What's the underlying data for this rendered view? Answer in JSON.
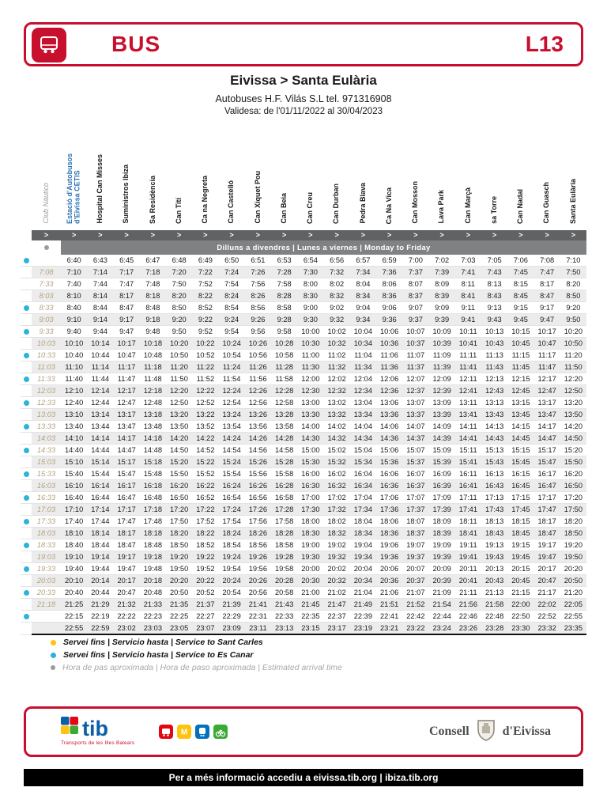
{
  "header": {
    "bus_label": "BUS",
    "line_label": "L13"
  },
  "title": {
    "route": "Eivissa > Santa Eulària",
    "operator": "Autobuses  H.F. Vilás S.L tel. 971316908",
    "validity": "Validesa: de l'01/11/2022 al 30/04/2023"
  },
  "timetable": {
    "arrow_symbol": ">",
    "day_band": "Dilluns a divendres | Lunes a viernes | Monday to Friday",
    "stops": [
      {
        "name": "Club Náutico",
        "style": "club"
      },
      {
        "name": "Estació d'Autobusos d'Eivissa CETIS",
        "style": "blue"
      },
      {
        "name": "Hospital Can Misses",
        "style": ""
      },
      {
        "name": "Suministros Ibiza",
        "style": ""
      },
      {
        "name": "Sa Residència",
        "style": ""
      },
      {
        "name": "Can Tití",
        "style": ""
      },
      {
        "name": "Ca na Negreta",
        "style": ""
      },
      {
        "name": "Can Castelló",
        "style": ""
      },
      {
        "name": "Can Xiquet Pou",
        "style": ""
      },
      {
        "name": "Can Beia",
        "style": ""
      },
      {
        "name": "Can Creu",
        "style": ""
      },
      {
        "name": "Can Durban",
        "style": ""
      },
      {
        "name": "Pedra Blava",
        "style": ""
      },
      {
        "name": "Ca Na Vica",
        "style": ""
      },
      {
        "name": "Can Mosson",
        "style": ""
      },
      {
        "name": "Lava Park",
        "style": ""
      },
      {
        "name": "Can Marçà",
        "style": ""
      },
      {
        "name": "sa Torre",
        "style": ""
      },
      {
        "name": "Can Nadal",
        "style": ""
      },
      {
        "name": "Can Guasch",
        "style": ""
      },
      {
        "name": "Santa Eulària",
        "style": ""
      }
    ],
    "rows": [
      {
        "dot": "cyan",
        "club_nautico": "",
        "times": [
          "6:40",
          "6:43",
          "6:45",
          "6:47",
          "6:48",
          "6:49",
          "6:50",
          "6:51",
          "6:53",
          "6:54",
          "6:56",
          "6:57",
          "6:59",
          "7:00",
          "7:02",
          "7:03",
          "7:05",
          "7:06",
          "7:08",
          "7:10"
        ]
      },
      {
        "dot": null,
        "club_nautico": "7:08",
        "times": [
          "7:10",
          "7:14",
          "7:17",
          "7:18",
          "7:20",
          "7:22",
          "7:24",
          "7:26",
          "7:28",
          "7:30",
          "7:32",
          "7:34",
          "7:36",
          "7:37",
          "7:39",
          "7:41",
          "7:43",
          "7:45",
          "7:47",
          "7:50"
        ]
      },
      {
        "dot": null,
        "club_nautico": "7:33",
        "times": [
          "7:40",
          "7:44",
          "7:47",
          "7:48",
          "7:50",
          "7:52",
          "7:54",
          "7:56",
          "7:58",
          "8:00",
          "8:02",
          "8:04",
          "8:06",
          "8:07",
          "8:09",
          "8:11",
          "8:13",
          "8:15",
          "8:17",
          "8:20"
        ]
      },
      {
        "dot": null,
        "club_nautico": "8:03",
        "times": [
          "8:10",
          "8:14",
          "8:17",
          "8:18",
          "8:20",
          "8:22",
          "8:24",
          "8:26",
          "8:28",
          "8:30",
          "8:32",
          "8:34",
          "8:36",
          "8:37",
          "8:39",
          "8:41",
          "8:43",
          "8:45",
          "8:47",
          "8:50"
        ]
      },
      {
        "dot": "cyan",
        "club_nautico": "8:33",
        "times": [
          "8:40",
          "8:44",
          "8:47",
          "8:48",
          "8:50",
          "8:52",
          "8:54",
          "8:56",
          "8:58",
          "9:00",
          "9:02",
          "9:04",
          "9:06",
          "9:07",
          "9:09",
          "9:11",
          "9:13",
          "9:15",
          "9:17",
          "9:20"
        ]
      },
      {
        "dot": null,
        "club_nautico": "9:03",
        "times": [
          "9:10",
          "9:14",
          "9:17",
          "9:18",
          "9:20",
          "9:22",
          "9:24",
          "9:26",
          "9:28",
          "9:30",
          "9:32",
          "9:34",
          "9:36",
          "9:37",
          "9:39",
          "9:41",
          "9:43",
          "9:45",
          "9:47",
          "9:50"
        ]
      },
      {
        "dot": "cyan",
        "club_nautico": "9:33",
        "times": [
          "9:40",
          "9:44",
          "9:47",
          "9:48",
          "9:50",
          "9:52",
          "9:54",
          "9:56",
          "9:58",
          "10:00",
          "10:02",
          "10:04",
          "10:06",
          "10:07",
          "10:09",
          "10:11",
          "10:13",
          "10:15",
          "10:17",
          "10:20"
        ]
      },
      {
        "dot": null,
        "club_nautico": "10:03",
        "times": [
          "10:10",
          "10:14",
          "10:17",
          "10:18",
          "10:20",
          "10:22",
          "10:24",
          "10:26",
          "10:28",
          "10:30",
          "10:32",
          "10:34",
          "10:36",
          "10:37",
          "10:39",
          "10:41",
          "10:43",
          "10:45",
          "10:47",
          "10:50"
        ]
      },
      {
        "dot": "cyan",
        "club_nautico": "10:33",
        "times": [
          "10:40",
          "10:44",
          "10:47",
          "10:48",
          "10:50",
          "10:52",
          "10:54",
          "10:56",
          "10:58",
          "11:00",
          "11:02",
          "11:04",
          "11:06",
          "11:07",
          "11:09",
          "11:11",
          "11:13",
          "11:15",
          "11:17",
          "11:20"
        ]
      },
      {
        "dot": null,
        "club_nautico": "11:03",
        "times": [
          "11:10",
          "11:14",
          "11:17",
          "11:18",
          "11:20",
          "11:22",
          "11:24",
          "11:26",
          "11:28",
          "11:30",
          "11:32",
          "11:34",
          "11:36",
          "11:37",
          "11:39",
          "11:41",
          "11:43",
          "11:45",
          "11:47",
          "11:50"
        ]
      },
      {
        "dot": "cyan",
        "club_nautico": "11:33",
        "times": [
          "11:40",
          "11:44",
          "11:47",
          "11:48",
          "11:50",
          "11:52",
          "11:54",
          "11:56",
          "11:58",
          "12:00",
          "12:02",
          "12:04",
          "12:06",
          "12:07",
          "12:09",
          "12:11",
          "12:13",
          "12:15",
          "12:17",
          "12:20"
        ]
      },
      {
        "dot": null,
        "club_nautico": "12:03",
        "times": [
          "12:10",
          "12:14",
          "12:17",
          "12:18",
          "12:20",
          "12:22",
          "12:24",
          "12:26",
          "12:28",
          "12:30",
          "12:32",
          "12:34",
          "12:36",
          "12:37",
          "12:39",
          "12:41",
          "12:43",
          "12:45",
          "12:47",
          "12:50"
        ]
      },
      {
        "dot": "cyan",
        "club_nautico": "12:33",
        "times": [
          "12:40",
          "12:44",
          "12:47",
          "12:48",
          "12:50",
          "12:52",
          "12:54",
          "12:56",
          "12:58",
          "13:00",
          "13:02",
          "13:04",
          "13:06",
          "13:07",
          "13:09",
          "13:11",
          "13:13",
          "13:15",
          "13:17",
          "13:20"
        ]
      },
      {
        "dot": null,
        "club_nautico": "13:03",
        "times": [
          "13:10",
          "13:14",
          "13:17",
          "13:18",
          "13:20",
          "13:22",
          "13:24",
          "13:26",
          "13:28",
          "13:30",
          "13:32",
          "13:34",
          "13:36",
          "13:37",
          "13:39",
          "13:41",
          "13:43",
          "13:45",
          "13:47",
          "13:50"
        ]
      },
      {
        "dot": "cyan",
        "club_nautico": "13:33",
        "times": [
          "13:40",
          "13:44",
          "13:47",
          "13:48",
          "13:50",
          "13:52",
          "13:54",
          "13:56",
          "13:58",
          "14:00",
          "14:02",
          "14:04",
          "14:06",
          "14:07",
          "14:09",
          "14:11",
          "14:13",
          "14:15",
          "14:17",
          "14:20"
        ]
      },
      {
        "dot": null,
        "club_nautico": "14:03",
        "times": [
          "14:10",
          "14:14",
          "14:17",
          "14:18",
          "14:20",
          "14:22",
          "14:24",
          "14:26",
          "14:28",
          "14:30",
          "14:32",
          "14:34",
          "14:36",
          "14:37",
          "14:39",
          "14:41",
          "14:43",
          "14:45",
          "14:47",
          "14:50"
        ]
      },
      {
        "dot": "cyan",
        "club_nautico": "14:33",
        "times": [
          "14:40",
          "14:44",
          "14:47",
          "14:48",
          "14:50",
          "14:52",
          "14:54",
          "14:56",
          "14:58",
          "15:00",
          "15:02",
          "15:04",
          "15:06",
          "15:07",
          "15:09",
          "15:11",
          "15:13",
          "15:15",
          "15:17",
          "15:20"
        ]
      },
      {
        "dot": null,
        "club_nautico": "15:03",
        "times": [
          "15:10",
          "15:14",
          "15:17",
          "15:18",
          "15:20",
          "15:22",
          "15:24",
          "15:26",
          "15:28",
          "15:30",
          "15:32",
          "15:34",
          "15:36",
          "15:37",
          "15:39",
          "15:41",
          "15:43",
          "15:45",
          "15:47",
          "15:50"
        ]
      },
      {
        "dot": "cyan",
        "club_nautico": "15:33",
        "times": [
          "15:40",
          "15:44",
          "15:47",
          "15:48",
          "15:50",
          "15:52",
          "15:54",
          "15:56",
          "15:58",
          "16:00",
          "16:02",
          "16:04",
          "16:06",
          "16:07",
          "16:09",
          "16:11",
          "16:13",
          "16:15",
          "16:17",
          "16:20"
        ]
      },
      {
        "dot": null,
        "club_nautico": "16:03",
        "times": [
          "16:10",
          "16:14",
          "16:17",
          "16:18",
          "16:20",
          "16:22",
          "16:24",
          "16:26",
          "16:28",
          "16:30",
          "16:32",
          "16:34",
          "16:36",
          "16:37",
          "16:39",
          "16:41",
          "16:43",
          "16:45",
          "16:47",
          "16:50"
        ]
      },
      {
        "dot": "cyan",
        "club_nautico": "16:33",
        "times": [
          "16:40",
          "16:44",
          "16:47",
          "16:48",
          "16:50",
          "16:52",
          "16:54",
          "16:56",
          "16:58",
          "17:00",
          "17:02",
          "17:04",
          "17:06",
          "17:07",
          "17:09",
          "17:11",
          "17:13",
          "17:15",
          "17:17",
          "17:20"
        ]
      },
      {
        "dot": null,
        "club_nautico": "17:03",
        "times": [
          "17:10",
          "17:14",
          "17:17",
          "17:18",
          "17:20",
          "17:22",
          "17:24",
          "17:26",
          "17:28",
          "17:30",
          "17:32",
          "17:34",
          "17:36",
          "17:37",
          "17:39",
          "17:41",
          "17:43",
          "17:45",
          "17:47",
          "17:50"
        ]
      },
      {
        "dot": "cyan",
        "club_nautico": "17:33",
        "times": [
          "17:40",
          "17:44",
          "17:47",
          "17:48",
          "17:50",
          "17:52",
          "17:54",
          "17:56",
          "17:58",
          "18:00",
          "18:02",
          "18:04",
          "18:06",
          "18:07",
          "18:09",
          "18:11",
          "18:13",
          "18:15",
          "18:17",
          "18:20"
        ]
      },
      {
        "dot": null,
        "club_nautico": "18:03",
        "times": [
          "18:10",
          "18:14",
          "18:17",
          "18:18",
          "18:20",
          "18:22",
          "18:24",
          "18:26",
          "18:28",
          "18:30",
          "18:32",
          "18:34",
          "18:36",
          "18:37",
          "18:39",
          "18:41",
          "18:43",
          "18:45",
          "18:47",
          "18:50"
        ]
      },
      {
        "dot": "cyan",
        "club_nautico": "18:33",
        "times": [
          "18:40",
          "18:44",
          "18:47",
          "18:48",
          "18:50",
          "18:52",
          "18:54",
          "18:56",
          "18:58",
          "19:00",
          "19:02",
          "19:04",
          "19:06",
          "19:07",
          "19:09",
          "19:11",
          "19:13",
          "19:15",
          "19:17",
          "19:20"
        ]
      },
      {
        "dot": null,
        "club_nautico": "19:03",
        "times": [
          "19:10",
          "19:14",
          "19:17",
          "19:18",
          "19:20",
          "19:22",
          "19:24",
          "19:26",
          "19:28",
          "19:30",
          "19:32",
          "19:34",
          "19:36",
          "19:37",
          "19:39",
          "19:41",
          "19:43",
          "19:45",
          "19:47",
          "19:50"
        ]
      },
      {
        "dot": "cyan",
        "club_nautico": "19:33",
        "times": [
          "19:40",
          "19:44",
          "19:47",
          "19:48",
          "19:50",
          "19:52",
          "19:54",
          "19:56",
          "19:58",
          "20:00",
          "20:02",
          "20:04",
          "20:06",
          "20:07",
          "20:09",
          "20:11",
          "20:13",
          "20:15",
          "20:17",
          "20:20"
        ]
      },
      {
        "dot": null,
        "club_nautico": "20:03",
        "times": [
          "20:10",
          "20:14",
          "20:17",
          "20:18",
          "20:20",
          "20:22",
          "20:24",
          "20:26",
          "20:28",
          "20:30",
          "20:32",
          "20:34",
          "20:36",
          "20:37",
          "20:39",
          "20:41",
          "20:43",
          "20:45",
          "20:47",
          "20:50"
        ]
      },
      {
        "dot": "cyan",
        "club_nautico": "20:33",
        "times": [
          "20:40",
          "20:44",
          "20:47",
          "20:48",
          "20:50",
          "20:52",
          "20:54",
          "20:56",
          "20:58",
          "21:00",
          "21:02",
          "21:04",
          "21:06",
          "21:07",
          "21:09",
          "21:11",
          "21:13",
          "21:15",
          "21:17",
          "21:20"
        ]
      },
      {
        "dot": null,
        "club_nautico": "21:18",
        "times": [
          "21:25",
          "21:29",
          "21:32",
          "21:33",
          "21:35",
          "21:37",
          "21:39",
          "21:41",
          "21:43",
          "21:45",
          "21:47",
          "21:49",
          "21:51",
          "21:52",
          "21:54",
          "21:56",
          "21:58",
          "22:00",
          "22:02",
          "22:05"
        ]
      },
      {
        "dot": "cyan",
        "club_nautico": "",
        "times": [
          "22:15",
          "22:19",
          "22:22",
          "22:23",
          "22:25",
          "22:27",
          "22:29",
          "22:31",
          "22:33",
          "22:35",
          "22:37",
          "22:39",
          "22:41",
          "22:42",
          "22:44",
          "22:46",
          "22:48",
          "22:50",
          "22:52",
          "22:55"
        ]
      },
      {
        "dot": null,
        "club_nautico": "",
        "times": [
          "22:55",
          "22:59",
          "23:02",
          "23:03",
          "23:05",
          "23:07",
          "23:09",
          "23:11",
          "23:13",
          "23:15",
          "23:17",
          "23:19",
          "23:21",
          "23:22",
          "23:24",
          "23:26",
          "23:28",
          "23:30",
          "23:32",
          "23:35"
        ]
      }
    ]
  },
  "legend": [
    {
      "color": "yellow",
      "text": "Servei fins | Servicio hasta | Service to Sant Carles"
    },
    {
      "color": "cyan",
      "text": "Servei fins | Servicio hasta | Service to Es Canar"
    },
    {
      "color": "gray",
      "text": "Hora de pas aproximada | Hora de paso aproximada | Estimated arrival time"
    }
  ],
  "footer": {
    "tib_label": "tib",
    "tib_subtitle": "Transports de les Illes Balears",
    "consell_left": "Consell",
    "consell_right": "d'Eivissa",
    "info_bar": "Per a més informació accediu a eivissa.tib.org  |  ibiza.tib.org"
  },
  "colors": {
    "red": "#c8102e",
    "blue": "#2d74b5",
    "cyan": "#29b4d8",
    "yellow": "#ffc20e",
    "gray": "#9b9b9b",
    "club": "#b3a27e"
  }
}
